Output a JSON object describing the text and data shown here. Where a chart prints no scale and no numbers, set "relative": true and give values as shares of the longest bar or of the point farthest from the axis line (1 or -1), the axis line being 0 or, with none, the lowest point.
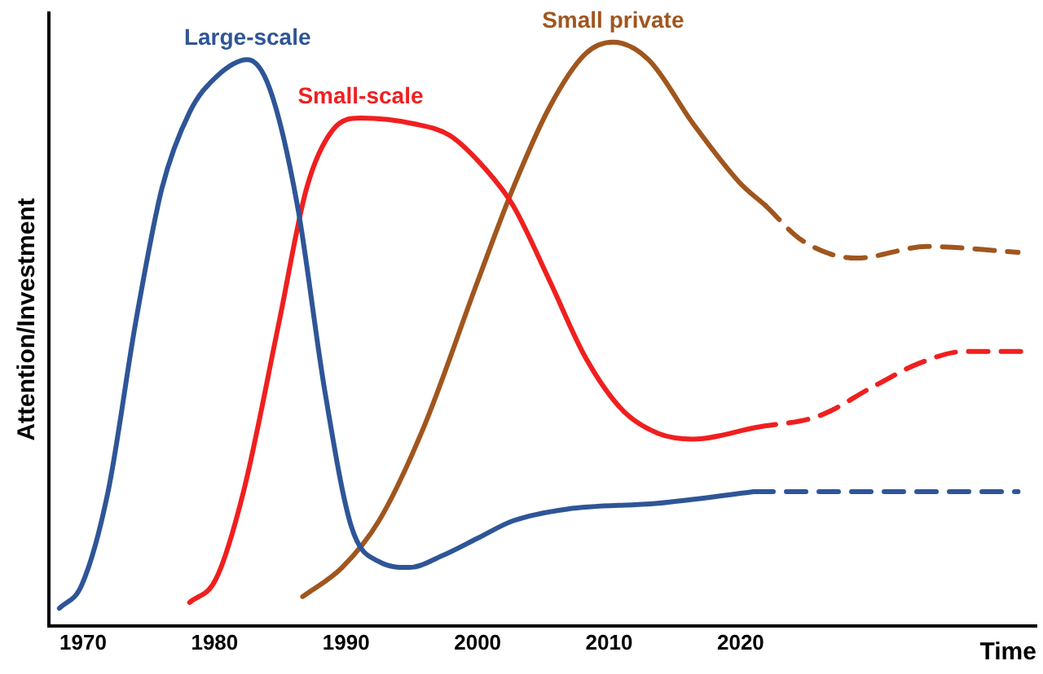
{
  "chart_data": {
    "type": "line",
    "relative": true,
    "xlabel": "Time",
    "ylabel": "Attention/Investment",
    "xlim": [
      1967.4,
      2042.5
    ],
    "xticks": [
      1970,
      1980,
      1990,
      2000,
      2010,
      2020
    ],
    "tick_labels": "x",
    "grid": false,
    "legend": false,
    "marker": "none",
    "series": [
      {
        "name": "Large-scale",
        "color": "#2e5597",
        "line_style": "solid",
        "x": [
          1968.2,
          1969.9,
          1971.9,
          1974,
          1976,
          1978.1,
          1980.1,
          1982.5,
          1984.2,
          1986.3,
          1988.4,
          1990.4,
          1992.5,
          1994.8,
          1997.3,
          2000,
          2002.7,
          2006.8,
          2013.7,
          2021
        ],
        "values": [
          0.03,
          0.07,
          0.23,
          0.52,
          0.75,
          0.88,
          0.94,
          0.97,
          0.92,
          0.72,
          0.4,
          0.17,
          0.11,
          0.1,
          0.12,
          0.15,
          0.18,
          0.2,
          0.21,
          0.23
        ]
      },
      {
        "color": "#2e5597",
        "line_style": "dashed",
        "x": [
          2021,
          2041.1
        ],
        "values": [
          0.23,
          0.23
        ]
      },
      {
        "name": "Small-scale",
        "color": "#f01f1f",
        "line_style": "solid",
        "x": [
          1978.1,
          1980.1,
          1982.2,
          1984.9,
          1987,
          1989,
          1991.1,
          1995.2,
          1997.9,
          2000.7,
          2002.7,
          2005.5,
          2008.2,
          2011,
          2013.7,
          2016.4,
          2021.2
        ],
        "values": [
          0.04,
          0.08,
          0.23,
          0.52,
          0.75,
          0.85,
          0.87,
          0.86,
          0.84,
          0.78,
          0.72,
          0.59,
          0.46,
          0.37,
          0.33,
          0.32,
          0.34
        ]
      },
      {
        "color": "#f01f1f",
        "line_style": "dashed",
        "x": [
          2021.2,
          2026,
          2030.1,
          2033.6,
          2037,
          2041.8
        ],
        "values": [
          0.34,
          0.36,
          0.41,
          0.45,
          0.47,
          0.47
        ]
      },
      {
        "name": "Small private",
        "color": "#a0561e",
        "line_style": "solid",
        "x": [
          1986.7,
          1989.7,
          1992.5,
          1995.9,
          2000,
          2002.7,
          2005.5,
          2008.2,
          2010.3,
          2013,
          2016.4,
          2019.9,
          2021.9
        ],
        "values": [
          0.05,
          0.1,
          0.18,
          0.34,
          0.59,
          0.75,
          0.89,
          0.98,
          1,
          0.97,
          0.86,
          0.76,
          0.72
        ]
      },
      {
        "color": "#a0561e",
        "line_style": "dashed",
        "x": [
          2021.9,
          2024.7,
          2028.8,
          2034.2,
          2041.1
        ],
        "values": [
          0.72,
          0.66,
          0.63,
          0.65,
          0.64
        ]
      }
    ]
  }
}
